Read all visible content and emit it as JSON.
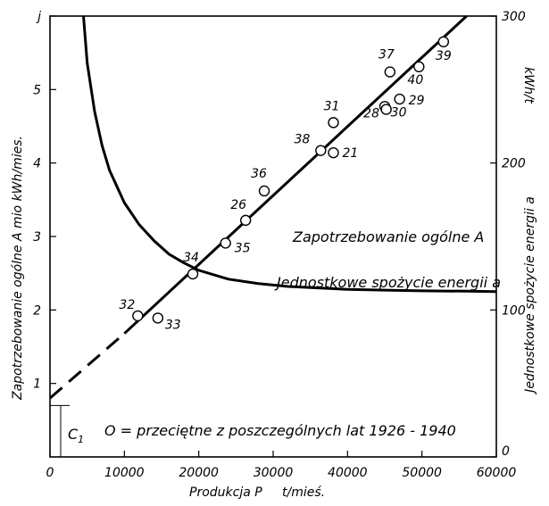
{
  "chart_data": {
    "type": "scatter",
    "left_axis": {
      "label": "Zapotrzebowanie ogólne A mio kWh/mies.",
      "ticks": [
        {
          "value": 1,
          "label": "1"
        },
        {
          "value": 2,
          "label": "2"
        },
        {
          "value": 3,
          "label": "3"
        },
        {
          "value": 4,
          "label": "4"
        },
        {
          "value": 5,
          "label": "5"
        },
        {
          "value": 6,
          "label": "j"
        }
      ],
      "range": [
        0,
        6
      ]
    },
    "right_axis": {
      "label": "Jednostkowe spożycie energii a",
      "unit": "kWh/t",
      "ticks": [
        {
          "value": 0,
          "label": "0"
        },
        {
          "value": 100,
          "label": "100"
        },
        {
          "value": 200,
          "label": "200"
        },
        {
          "value": 300,
          "label": "300"
        }
      ],
      "range": [
        0,
        300
      ]
    },
    "x_axis": {
      "label": "Produkcja P",
      "unit": "t/mieś.",
      "ticks": [
        {
          "value": 0,
          "label": "0"
        },
        {
          "value": 10000,
          "label": "10000"
        },
        {
          "value": 20000,
          "label": "20000"
        },
        {
          "value": 30000,
          "label": "30000"
        },
        {
          "value": 40000,
          "label": "40000"
        },
        {
          "value": 50000,
          "label": "50000"
        },
        {
          "value": 60000,
          "label": "60000"
        }
      ],
      "range": [
        0,
        60000
      ]
    },
    "points": [
      {
        "label": "32",
        "x": 11800,
        "y": 1.92
      },
      {
        "label": "33",
        "x": 14500,
        "y": 1.89
      },
      {
        "label": "34",
        "x": 19200,
        "y": 2.49
      },
      {
        "label": "35",
        "x": 23600,
        "y": 2.91
      },
      {
        "label": "26",
        "x": 26300,
        "y": 3.22
      },
      {
        "label": "36",
        "x": 28800,
        "y": 3.62
      },
      {
        "label": "38",
        "x": 36400,
        "y": 4.17
      },
      {
        "label": "21",
        "x": 38100,
        "y": 4.14
      },
      {
        "label": "31",
        "x": 38100,
        "y": 4.55
      },
      {
        "label": "28",
        "x": 45000,
        "y": 4.77
      },
      {
        "label": "30",
        "x": 45200,
        "y": 4.73
      },
      {
        "label": "29",
        "x": 47000,
        "y": 4.87
      },
      {
        "label": "37",
        "x": 45700,
        "y": 5.24
      },
      {
        "label": "40",
        "x": 49600,
        "y": 5.31
      },
      {
        "label": "39",
        "x": 52900,
        "y": 5.65
      }
    ],
    "total_demand_line": {
      "label": "Zapotrzebowanie ogólne A",
      "dashed_from": [
        0,
        0.8
      ],
      "solid_from": [
        10000,
        1.68
      ],
      "solid_to": [
        56000,
        6.0
      ]
    },
    "unit_consumption_curve": {
      "label": "Jednostkowe spożycie energii a",
      "axis": "right",
      "points": [
        [
          4500,
          300
        ],
        [
          5000,
          268
        ],
        [
          6000,
          235
        ],
        [
          7000,
          212
        ],
        [
          8000,
          195
        ],
        [
          10000,
          173
        ],
        [
          12000,
          158
        ],
        [
          14000,
          147
        ],
        [
          16000,
          138
        ],
        [
          18000,
          132
        ],
        [
          20000,
          127
        ],
        [
          24000,
          121
        ],
        [
          28000,
          118
        ],
        [
          32000,
          116
        ],
        [
          36000,
          115
        ],
        [
          40000,
          114
        ],
        [
          45000,
          113.5
        ],
        [
          50000,
          113
        ],
        [
          56000,
          112.8
        ],
        [
          60000,
          112.5
        ]
      ]
    },
    "c1_marker": {
      "label": "C",
      "subscript": "1",
      "value": 0.7
    },
    "annotations": {
      "curve_A": "Zapotrzebowanie ogólne A",
      "curve_a": "Jednostkowe spożycie energii a",
      "note": "O = przeciętne z poszczególnych lat 1926 - 1940"
    }
  }
}
